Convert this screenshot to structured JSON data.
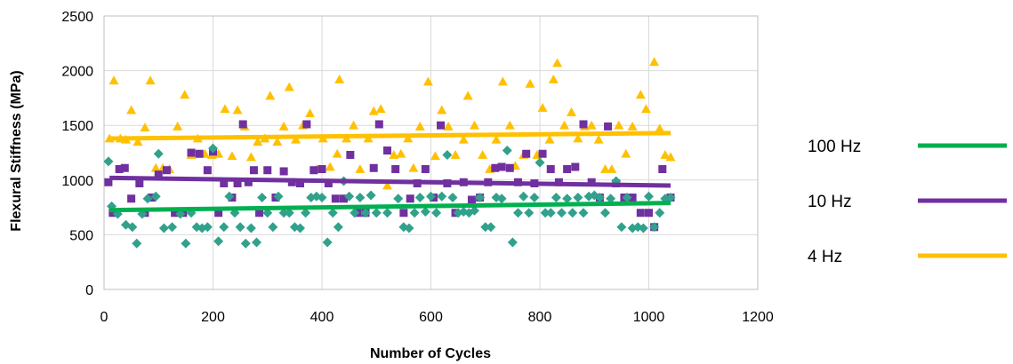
{
  "chart_data": {
    "type": "scatter",
    "xlabel": "Number of Cycles",
    "ylabel": "Flexural Stiffness (MPa)",
    "xlim": [
      0,
      1200
    ],
    "ylim": [
      0,
      2500
    ],
    "xticks": [
      0,
      200,
      400,
      600,
      800,
      1000,
      1200
    ],
    "yticks": [
      0,
      500,
      1000,
      1500,
      2000,
      2500
    ],
    "grid": true,
    "legend_position": "right",
    "series": [
      {
        "name": "100 Hz",
        "color": "#00b050",
        "marker_color": "#31a18c",
        "marker": "diamond",
        "trendline": [
          [
            10,
            725
          ],
          [
            1040,
            790
          ]
        ],
        "points": [
          [
            8,
            1170
          ],
          [
            14,
            760
          ],
          [
            25,
            690
          ],
          [
            40,
            590
          ],
          [
            52,
            570
          ],
          [
            60,
            420
          ],
          [
            70,
            690
          ],
          [
            80,
            830
          ],
          [
            95,
            850
          ],
          [
            100,
            1240
          ],
          [
            110,
            560
          ],
          [
            125,
            570
          ],
          [
            140,
            690
          ],
          [
            150,
            420
          ],
          [
            160,
            700
          ],
          [
            170,
            570
          ],
          [
            180,
            560
          ],
          [
            190,
            570
          ],
          [
            200,
            1290
          ],
          [
            210,
            440
          ],
          [
            220,
            570
          ],
          [
            230,
            850
          ],
          [
            240,
            700
          ],
          [
            250,
            570
          ],
          [
            260,
            420
          ],
          [
            270,
            560
          ],
          [
            280,
            430
          ],
          [
            290,
            840
          ],
          [
            300,
            700
          ],
          [
            310,
            570
          ],
          [
            320,
            850
          ],
          [
            330,
            700
          ],
          [
            340,
            700
          ],
          [
            350,
            570
          ],
          [
            360,
            560
          ],
          [
            370,
            700
          ],
          [
            380,
            840
          ],
          [
            390,
            850
          ],
          [
            400,
            840
          ],
          [
            410,
            430
          ],
          [
            420,
            700
          ],
          [
            430,
            570
          ],
          [
            440,
            990
          ],
          [
            450,
            850
          ],
          [
            460,
            700
          ],
          [
            470,
            840
          ],
          [
            480,
            700
          ],
          [
            490,
            860
          ],
          [
            500,
            700
          ],
          [
            520,
            700
          ],
          [
            540,
            830
          ],
          [
            550,
            570
          ],
          [
            560,
            560
          ],
          [
            570,
            700
          ],
          [
            580,
            840
          ],
          [
            590,
            710
          ],
          [
            600,
            850
          ],
          [
            610,
            700
          ],
          [
            620,
            850
          ],
          [
            630,
            1230
          ],
          [
            640,
            840
          ],
          [
            650,
            700
          ],
          [
            660,
            710
          ],
          [
            670,
            700
          ],
          [
            680,
            720
          ],
          [
            690,
            840
          ],
          [
            700,
            570
          ],
          [
            710,
            570
          ],
          [
            720,
            840
          ],
          [
            730,
            830
          ],
          [
            740,
            1270
          ],
          [
            750,
            430
          ],
          [
            760,
            700
          ],
          [
            770,
            850
          ],
          [
            780,
            700
          ],
          [
            790,
            840
          ],
          [
            800,
            1160
          ],
          [
            810,
            700
          ],
          [
            820,
            700
          ],
          [
            830,
            840
          ],
          [
            840,
            700
          ],
          [
            850,
            830
          ],
          [
            860,
            700
          ],
          [
            870,
            840
          ],
          [
            880,
            700
          ],
          [
            890,
            850
          ],
          [
            900,
            860
          ],
          [
            910,
            840
          ],
          [
            920,
            700
          ],
          [
            930,
            830
          ],
          [
            940,
            990
          ],
          [
            950,
            570
          ],
          [
            960,
            840
          ],
          [
            970,
            560
          ],
          [
            980,
            570
          ],
          [
            990,
            560
          ],
          [
            1000,
            850
          ],
          [
            1010,
            570
          ],
          [
            1020,
            700
          ],
          [
            1030,
            830
          ],
          [
            1040,
            840
          ]
        ]
      },
      {
        "name": "10 Hz",
        "color": "#7030a0",
        "marker_color": "#7030a0",
        "marker": "square",
        "trendline": [
          [
            10,
            1020
          ],
          [
            1040,
            950
          ]
        ],
        "points": [
          [
            8,
            980
          ],
          [
            16,
            700
          ],
          [
            28,
            1100
          ],
          [
            38,
            1110
          ],
          [
            50,
            830
          ],
          [
            65,
            970
          ],
          [
            75,
            700
          ],
          [
            88,
            840
          ],
          [
            100,
            1050
          ],
          [
            115,
            1090
          ],
          [
            130,
            700
          ],
          [
            145,
            700
          ],
          [
            160,
            1250
          ],
          [
            175,
            1240
          ],
          [
            190,
            1090
          ],
          [
            200,
            1260
          ],
          [
            210,
            700
          ],
          [
            220,
            970
          ],
          [
            235,
            840
          ],
          [
            245,
            970
          ],
          [
            255,
            1510
          ],
          [
            265,
            980
          ],
          [
            275,
            1090
          ],
          [
            285,
            700
          ],
          [
            300,
            1090
          ],
          [
            315,
            840
          ],
          [
            330,
            1080
          ],
          [
            345,
            980
          ],
          [
            360,
            970
          ],
          [
            372,
            1510
          ],
          [
            385,
            1090
          ],
          [
            400,
            1100
          ],
          [
            412,
            970
          ],
          [
            425,
            830
          ],
          [
            440,
            830
          ],
          [
            452,
            1230
          ],
          [
            465,
            700
          ],
          [
            480,
            700
          ],
          [
            495,
            1110
          ],
          [
            505,
            1510
          ],
          [
            520,
            1270
          ],
          [
            535,
            1100
          ],
          [
            550,
            700
          ],
          [
            562,
            830
          ],
          [
            575,
            970
          ],
          [
            590,
            1100
          ],
          [
            605,
            840
          ],
          [
            618,
            1500
          ],
          [
            630,
            970
          ],
          [
            645,
            700
          ],
          [
            660,
            980
          ],
          [
            675,
            820
          ],
          [
            690,
            840
          ],
          [
            705,
            980
          ],
          [
            718,
            1110
          ],
          [
            730,
            1120
          ],
          [
            745,
            1110
          ],
          [
            760,
            980
          ],
          [
            775,
            1240
          ],
          [
            790,
            970
          ],
          [
            805,
            1240
          ],
          [
            820,
            1100
          ],
          [
            835,
            980
          ],
          [
            850,
            1100
          ],
          [
            865,
            1120
          ],
          [
            880,
            1510
          ],
          [
            895,
            980
          ],
          [
            910,
            840
          ],
          [
            925,
            1490
          ],
          [
            940,
            970
          ],
          [
            955,
            840
          ],
          [
            970,
            840
          ],
          [
            985,
            700
          ],
          [
            1000,
            700
          ],
          [
            1010,
            570
          ],
          [
            1025,
            1100
          ],
          [
            1040,
            840
          ]
        ]
      },
      {
        "name": "4 Hz",
        "color": "#ffc000",
        "marker_color": "#ffc000",
        "marker": "triangle",
        "trendline": [
          [
            10,
            1380
          ],
          [
            1040,
            1430
          ]
        ],
        "points": [
          [
            10,
            1380
          ],
          [
            18,
            1910
          ],
          [
            30,
            1380
          ],
          [
            40,
            1370
          ],
          [
            50,
            1640
          ],
          [
            62,
            1350
          ],
          [
            75,
            1480
          ],
          [
            85,
            1910
          ],
          [
            95,
            1110
          ],
          [
            108,
            1110
          ],
          [
            120,
            1100
          ],
          [
            135,
            1490
          ],
          [
            148,
            1780
          ],
          [
            160,
            1230
          ],
          [
            172,
            1380
          ],
          [
            185,
            1240
          ],
          [
            198,
            1230
          ],
          [
            210,
            1240
          ],
          [
            222,
            1650
          ],
          [
            235,
            1220
          ],
          [
            245,
            1640
          ],
          [
            258,
            1490
          ],
          [
            270,
            1210
          ],
          [
            282,
            1350
          ],
          [
            295,
            1380
          ],
          [
            305,
            1770
          ],
          [
            318,
            1350
          ],
          [
            330,
            1490
          ],
          [
            340,
            1850
          ],
          [
            352,
            1370
          ],
          [
            365,
            1500
          ],
          [
            378,
            1610
          ],
          [
            390,
            1100
          ],
          [
            402,
            1380
          ],
          [
            415,
            1120
          ],
          [
            428,
            1240
          ],
          [
            432,
            1920
          ],
          [
            445,
            1380
          ],
          [
            458,
            1500
          ],
          [
            470,
            1100
          ],
          [
            485,
            1380
          ],
          [
            495,
            1630
          ],
          [
            508,
            1650
          ],
          [
            520,
            950
          ],
          [
            532,
            1230
          ],
          [
            545,
            1240
          ],
          [
            558,
            1380
          ],
          [
            568,
            1110
          ],
          [
            580,
            1490
          ],
          [
            595,
            1900
          ],
          [
            608,
            1220
          ],
          [
            620,
            1640
          ],
          [
            632,
            1490
          ],
          [
            645,
            1230
          ],
          [
            660,
            1370
          ],
          [
            668,
            1770
          ],
          [
            680,
            1500
          ],
          [
            695,
            1230
          ],
          [
            708,
            1100
          ],
          [
            720,
            1370
          ],
          [
            732,
            1900
          ],
          [
            745,
            1500
          ],
          [
            755,
            1130
          ],
          [
            770,
            1230
          ],
          [
            782,
            1880
          ],
          [
            795,
            1230
          ],
          [
            805,
            1660
          ],
          [
            818,
            1370
          ],
          [
            825,
            1920
          ],
          [
            832,
            2070
          ],
          [
            845,
            1500
          ],
          [
            858,
            1620
          ],
          [
            870,
            1380
          ],
          [
            882,
            1490
          ],
          [
            895,
            1500
          ],
          [
            908,
            1370
          ],
          [
            920,
            1100
          ],
          [
            932,
            1100
          ],
          [
            945,
            1500
          ],
          [
            958,
            1240
          ],
          [
            970,
            1490
          ],
          [
            985,
            1780
          ],
          [
            995,
            1650
          ],
          [
            1010,
            2080
          ],
          [
            1020,
            1470
          ],
          [
            1030,
            1230
          ],
          [
            1040,
            1210
          ]
        ]
      }
    ]
  }
}
